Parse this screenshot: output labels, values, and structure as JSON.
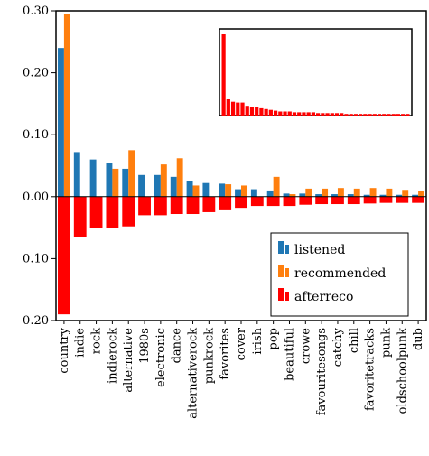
{
  "chart_data": {
    "type": "bar",
    "title": "",
    "xlabel": "",
    "ylabel": "",
    "ylim": [
      -0.2,
      0.3
    ],
    "y_ticks": [
      {
        "value": 0.3,
        "label": "0.30"
      },
      {
        "value": 0.2,
        "label": "0.20"
      },
      {
        "value": 0.1,
        "label": "0.10"
      },
      {
        "value": 0.0,
        "label": "0.00"
      },
      {
        "value": -0.1,
        "label": "0.10"
      },
      {
        "value": -0.2,
        "label": "0.20"
      }
    ],
    "categories": [
      "country",
      "indie",
      "rock",
      "indierock",
      "alternative",
      "1980s",
      "electronic",
      "dance",
      "alternativerock",
      "punkrock",
      "favorites",
      "cover",
      "irish",
      "pop",
      "beautiful",
      "crowe",
      "favouritesongs",
      "catchy",
      "chill",
      "favoritetracks",
      "punk",
      "oldschoolpunk",
      "dub"
    ],
    "series": [
      {
        "name": "listened",
        "color": "#1f77b4",
        "values": [
          0.24,
          0.072,
          0.06,
          0.055,
          0.045,
          0.035,
          0.035,
          0.032,
          0.025,
          0.022,
          0.021,
          0.012,
          0.012,
          0.01,
          0.005,
          0.005,
          0.004,
          0.004,
          0.004,
          0.003,
          0.003,
          0.003,
          0.003
        ]
      },
      {
        "name": "recommended",
        "color": "#ff7f0e",
        "values": [
          0.295,
          0.0,
          0.0,
          0.045,
          0.075,
          0.0,
          0.052,
          0.062,
          0.018,
          0.0,
          0.02,
          0.018,
          0.0,
          0.032,
          0.004,
          0.013,
          0.013,
          0.014,
          0.013,
          0.014,
          0.013,
          0.011,
          0.009
        ]
      },
      {
        "name": "afterreco",
        "color": "#ff0000",
        "values": [
          -0.19,
          -0.065,
          -0.05,
          -0.05,
          -0.048,
          -0.03,
          -0.03,
          -0.028,
          -0.028,
          -0.025,
          -0.022,
          -0.018,
          -0.015,
          -0.015,
          -0.015,
          -0.013,
          -0.012,
          -0.012,
          -0.012,
          -0.011,
          -0.01,
          -0.01,
          -0.01
        ]
      }
    ],
    "inset": {
      "type": "bar",
      "color": "#ff0000",
      "values": [
        1.0,
        0.2,
        0.17,
        0.16,
        0.16,
        0.12,
        0.11,
        0.1,
        0.09,
        0.08,
        0.07,
        0.06,
        0.05,
        0.05,
        0.05,
        0.04,
        0.04,
        0.04,
        0.04,
        0.04,
        0.03,
        0.03,
        0.03,
        0.03,
        0.03,
        0.03,
        0.02,
        0.02,
        0.02,
        0.02,
        0.02,
        0.02,
        0.02,
        0.02,
        0.02,
        0.02,
        0.02,
        0.02,
        0.02,
        0.02
      ]
    },
    "legend_position": "lower-right",
    "grid": false
  }
}
